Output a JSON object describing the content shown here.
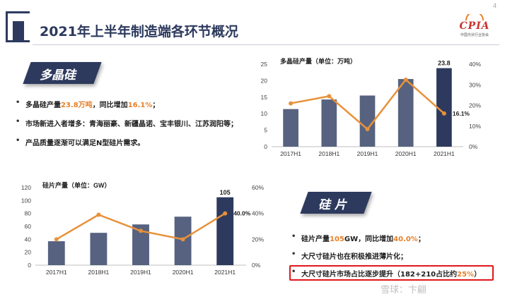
{
  "page": {
    "number": "4",
    "title": "2021年上半年制造端各环节概况"
  },
  "logo": {
    "text": "CPIA",
    "subtitle": "中国光伏行业协会"
  },
  "colors": {
    "bar": "#56627f",
    "bar_highlight": "#2d3a5e",
    "line": "#e8913a",
    "accent": "#e6802a",
    "banner": "#2d3a5e",
    "emphasis_box": "#e0161b"
  },
  "polysilicon": {
    "banner": "多晶硅",
    "bullets": [
      [
        "多晶硅产量",
        "23.8万吨",
        "，同比增加",
        "16.1%",
        "；"
      ],
      [
        "市场新进入者增多：青海丽豪、新疆晶诺、宝丰银川、江苏润阳等；",
        "",
        "",
        "",
        ""
      ],
      [
        "产品质量逐渐可以满足N型硅片需求。",
        "",
        "",
        "",
        ""
      ]
    ]
  },
  "wafer": {
    "banner": "硅  片",
    "bullets": [
      [
        "硅片产量",
        "105",
        "GW，同比增加",
        "40.0%",
        "；"
      ],
      [
        "大尺寸硅片也在积极推进薄片化；",
        "",
        "",
        "",
        ""
      ],
      [
        "大尺寸硅片市场占比逐步提升（182+210占比约",
        "",
        "",
        "25%",
        "）"
      ]
    ]
  },
  "watermark": "雪球：卞翩",
  "chart_data": [
    {
      "type": "bar",
      "title": "多晶硅产量（单位：万吨）",
      "categories": [
        "2017H1",
        "2018H1",
        "2019H1",
        "2020H1",
        "2021H1"
      ],
      "values": [
        11.4,
        14.3,
        15.5,
        20.5,
        23.8
      ],
      "ylim": [
        0,
        25
      ],
      "yticks": [
        0,
        5,
        10,
        15,
        20,
        25
      ],
      "y2lim": [
        0,
        40
      ],
      "y2ticks": [
        "0%",
        "10%",
        "20%",
        "30%",
        "40%"
      ],
      "y2values": [
        0,
        10,
        20,
        30,
        40
      ],
      "growth": [
        21,
        24.5,
        8.5,
        32.5,
        16.1
      ],
      "value_label": "23.8",
      "growth_label": "16.1%",
      "grid": false
    },
    {
      "type": "bar",
      "title": "硅片产量（单位：GW）",
      "categories": [
        "2017H1",
        "2018H1",
        "2019H1",
        "2020H1",
        "2021H1"
      ],
      "values": [
        37,
        50,
        63,
        75,
        105
      ],
      "ylim": [
        0,
        120
      ],
      "yticks": [
        0,
        20,
        40,
        60,
        80,
        100,
        120
      ],
      "y2lim": [
        0,
        60
      ],
      "y2ticks": [
        "0%",
        "20%",
        "40%",
        "60%"
      ],
      "y2values": [
        0,
        20,
        40,
        60
      ],
      "growth": [
        20,
        39,
        26.5,
        20,
        40
      ],
      "value_label": "105",
      "growth_label": "40.0%",
      "grid": false
    }
  ]
}
